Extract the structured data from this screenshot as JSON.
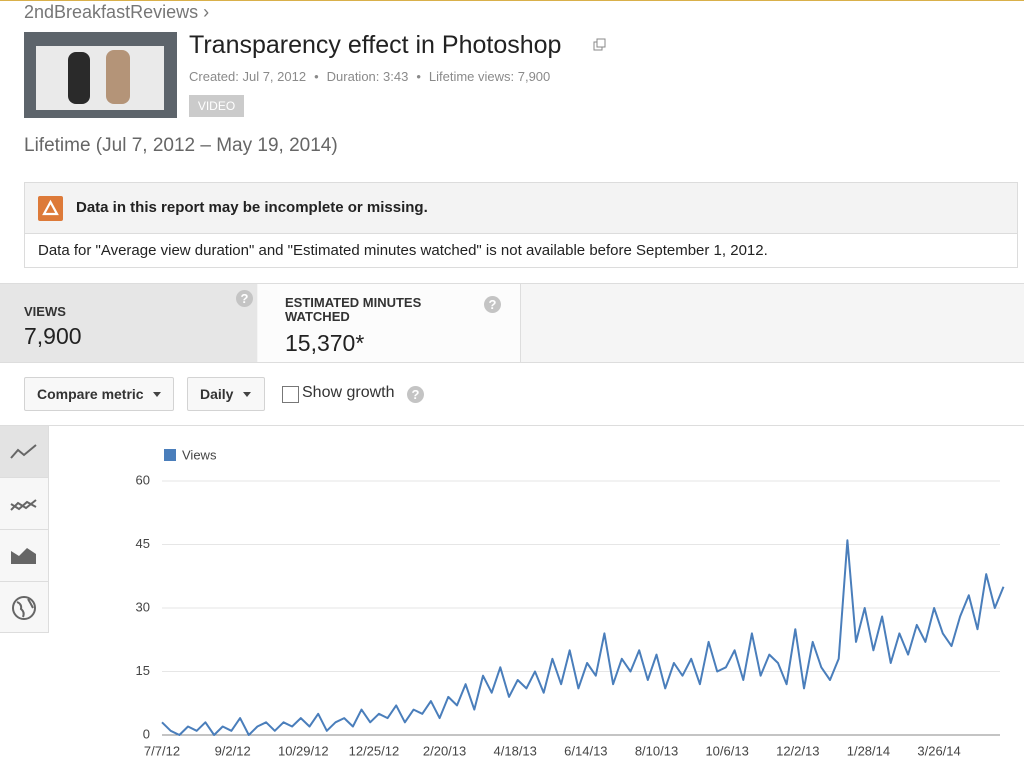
{
  "header": {
    "channel": "2ndBreakfastReviews ›",
    "title": "Transparency effect in Photoshop",
    "meta": [
      "Created: Jul 7, 2012",
      "Duration: 3:43",
      "Lifetime views: 7,900"
    ],
    "meta_separator": "•",
    "badge": "VIDEO"
  },
  "date_range": "Lifetime (Jul 7, 2012 – May 19, 2014)",
  "warning": {
    "title": "Data in this report may be incomplete or missing.",
    "message": "Data for \"Average view duration\" and \"Estimated minutes watched\" is not available before September 1, 2012."
  },
  "help_icon": "?",
  "metrics": [
    {
      "label": "VIEWS",
      "value": "7,900"
    },
    {
      "label": "ESTIMATED MINUTES WATCHED",
      "value": "15,370*"
    }
  ],
  "controls": {
    "compare": "Compare metric",
    "interval": "Daily",
    "growth": "Show growth"
  },
  "chart_data": {
    "type": "line",
    "x": [
      "7/7/12",
      "7/14/12",
      "7/21/12",
      "7/28/12",
      "8/4/12",
      "8/11/12",
      "8/18/12",
      "8/25/12",
      "9/1/12",
      "9/8/12",
      "9/15/12",
      "9/22/12",
      "9/29/12",
      "10/6/12",
      "10/13/12",
      "10/20/12",
      "10/27/12",
      "11/3/12",
      "11/10/12",
      "11/17/12",
      "11/24/12",
      "12/1/12",
      "12/8/12",
      "12/15/12",
      "12/22/12",
      "12/29/12",
      "1/5/13",
      "1/12/13",
      "1/19/13",
      "1/26/13",
      "2/2/13",
      "2/9/13",
      "2/16/13",
      "2/23/13",
      "3/2/13",
      "3/9/13",
      "3/16/13",
      "3/23/13",
      "3/30/13",
      "4/6/13",
      "4/13/13",
      "4/20/13",
      "4/27/13",
      "5/4/13",
      "5/11/13",
      "5/18/13",
      "5/25/13",
      "6/1/13",
      "6/8/13",
      "6/15/13",
      "6/22/13",
      "6/29/13",
      "7/6/13",
      "7/13/13",
      "7/20/13",
      "7/27/13",
      "8/3/13",
      "8/10/13",
      "8/17/13",
      "8/24/13",
      "8/31/13",
      "9/7/13",
      "9/14/13",
      "9/21/13",
      "9/28/13",
      "10/5/13",
      "10/12/13",
      "10/19/13",
      "10/26/13",
      "11/2/13",
      "11/9/13",
      "11/16/13",
      "11/23/13",
      "11/30/13",
      "12/7/13",
      "12/14/13",
      "12/21/13",
      "12/28/13",
      "1/4/14",
      "1/11/14",
      "1/18/14",
      "1/25/14",
      "2/1/14",
      "2/8/14",
      "2/15/14",
      "2/22/14",
      "3/1/14",
      "3/8/14",
      "3/15/14",
      "3/22/14",
      "3/29/14",
      "4/5/14",
      "4/12/14",
      "4/19/14",
      "4/26/14",
      "5/3/14",
      "5/10/14",
      "5/17/14"
    ],
    "series": [
      {
        "name": "Views",
        "color": "#4a7ebb",
        "values": [
          3,
          1,
          0,
          2,
          1,
          3,
          0,
          2,
          1,
          4,
          0,
          2,
          3,
          1,
          3,
          2,
          4,
          2,
          5,
          1,
          3,
          4,
          2,
          6,
          3,
          5,
          4,
          7,
          3,
          6,
          5,
          8,
          4,
          9,
          7,
          12,
          6,
          14,
          10,
          16,
          9,
          13,
          11,
          15,
          10,
          18,
          12,
          20,
          11,
          17,
          14,
          24,
          12,
          18,
          15,
          20,
          13,
          19,
          11,
          17,
          14,
          18,
          12,
          22,
          15,
          16,
          20,
          13,
          24,
          14,
          19,
          17,
          12,
          25,
          11,
          22,
          16,
          13,
          18,
          46,
          22,
          30,
          20,
          28,
          17,
          24,
          19,
          26,
          22,
          30,
          24,
          21,
          28,
          33,
          25,
          38,
          30,
          35
        ]
      }
    ],
    "xlim": [
      "7/7/12",
      "5/19/14"
    ],
    "xticks": [
      "7/7/12",
      "9/2/12",
      "10/29/12",
      "12/25/12",
      "2/20/13",
      "4/18/13",
      "6/14/13",
      "8/10/13",
      "10/6/13",
      "12/2/13",
      "1/28/14",
      "3/26/14"
    ],
    "ylim": [
      0,
      60
    ],
    "yticks": [
      0,
      15,
      30,
      45,
      60
    ],
    "grid": true,
    "legend": "top-left"
  }
}
